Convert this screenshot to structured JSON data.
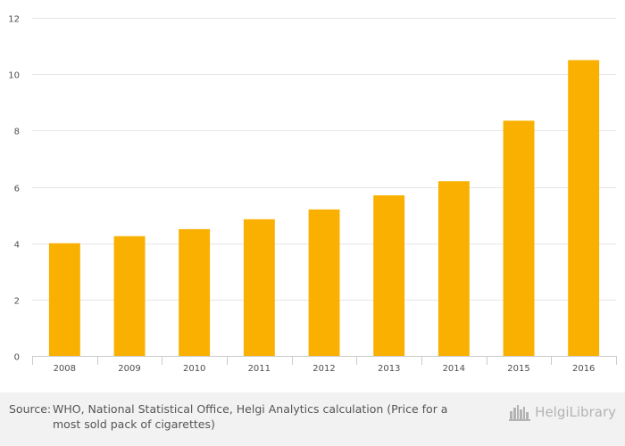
{
  "chart_data": {
    "type": "bar",
    "categories": [
      "2008",
      "2009",
      "2010",
      "2011",
      "2012",
      "2013",
      "2014",
      "2015",
      "2016"
    ],
    "values": [
      4.0,
      4.25,
      4.5,
      4.85,
      5.2,
      5.7,
      6.2,
      8.35,
      10.5
    ],
    "title": "",
    "xlabel": "",
    "ylabel": "",
    "ylim": [
      0,
      12
    ],
    "yticks": [
      "0",
      "2",
      "4",
      "6",
      "8",
      "10",
      "12"
    ],
    "grid": true,
    "bar_color": "#f9b000"
  },
  "footer": {
    "source_label": "Source:",
    "source_text": "WHO, National Statistical Office, Helgi Analytics calculation (Price for a most sold pack of cigarettes)",
    "brand": "HelgiLibrary",
    "brand_icon": "skyline-icon"
  }
}
